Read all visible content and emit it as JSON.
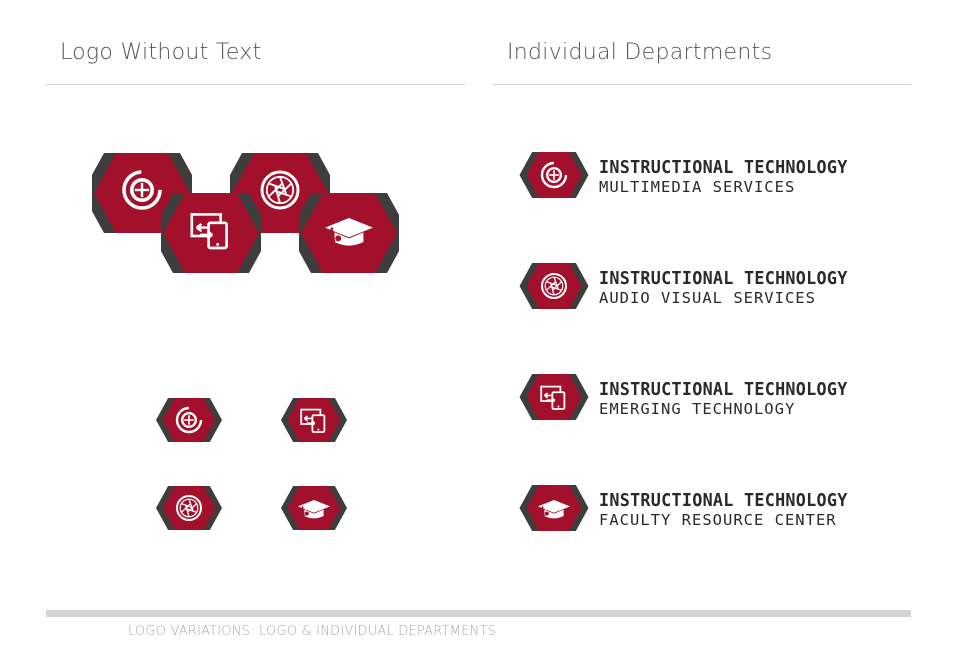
{
  "sections": {
    "left_title": "Logo Without Text",
    "right_title": "Individual Departments"
  },
  "departments": [
    {
      "main": "INSTRUCTIONAL TECHNOLOGY",
      "sub": "MULTIMEDIA SERVICES",
      "icon": "target-icon"
    },
    {
      "main": "INSTRUCTIONAL TECHNOLOGY",
      "sub": "AUDIO VISUAL SERVICES",
      "icon": "camera-aperture-icon"
    },
    {
      "main": "INSTRUCTIONAL TECHNOLOGY",
      "sub": "EMERGING TECHNOLOGY",
      "icon": "device-transfer-icon"
    },
    {
      "main": "INSTRUCTIONAL TECHNOLOGY",
      "sub": "FACULTY RESOURCE CENTER",
      "icon": "graduation-cap-icon"
    }
  ],
  "footer": {
    "caption": "LOGO VARIATIONS: LOGO & INDIVIDUAL DEPARTMENTS"
  },
  "colors": {
    "brand_red": "#a3102c",
    "dark_gray": "#3d3d3d",
    "rule_gray": "#cfcfcf",
    "footer_gray": "#d4d4d4"
  }
}
